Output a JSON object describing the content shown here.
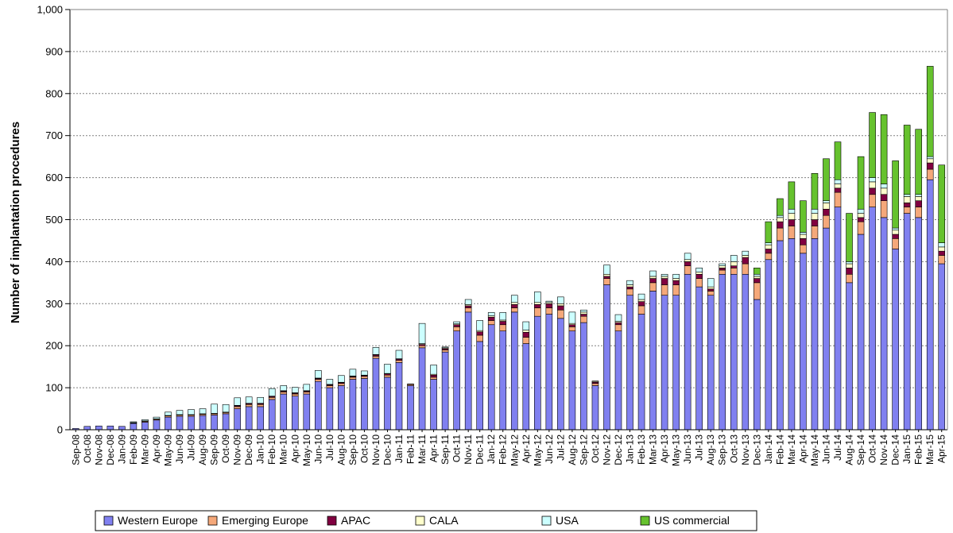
{
  "chart_data": {
    "type": "bar",
    "stacked": true,
    "title": "",
    "xlabel": "",
    "ylabel": "Number of implantation procedures",
    "ylim": [
      0,
      1000
    ],
    "yticks": [
      "0",
      "100",
      "200",
      "300",
      "400",
      "500",
      "600",
      "700",
      "800",
      "900",
      "1,000"
    ],
    "grid": "horizontal dashed",
    "legend_position": "bottom",
    "categories": [
      "Sep-08",
      "Oct-08",
      "Nov-08",
      "Dec-08",
      "Jan-09",
      "Feb-09",
      "Mar-09",
      "Apr-09",
      "May-09",
      "Jun-09",
      "Jul-09",
      "Aug-09",
      "Sep-09",
      "Oct-09",
      "Nov-09",
      "Dec-09",
      "Jan-10",
      "Feb-10",
      "Mar-10",
      "Apr-10",
      "May-10",
      "Jun-10",
      "Jul-10",
      "Aug-10",
      "Sep-10",
      "Oct-10",
      "Nov-10",
      "Dec-10",
      "Jan-11",
      "Feb-11",
      "Mar-11",
      "Apr-11",
      "Sep-11",
      "Oct-11",
      "Nov-11",
      "Dec-11",
      "Jan-12",
      "Feb-12",
      "May-12",
      "Apr-12",
      "May-12",
      "Jun-12",
      "Jul-12",
      "Aug-12",
      "Sep-12",
      "Oct-12",
      "Nov-12",
      "Dec-12",
      "Jan-13",
      "Feb-13",
      "Mar-13",
      "Apr-13",
      "May-13",
      "Jun-13",
      "Jul-13",
      "Aug-13",
      "Sep-13",
      "Oct-13",
      "Nov-13",
      "Dec-13",
      "Jan-14",
      "Feb-14",
      "Mar-14",
      "Apr-14",
      "May-14",
      "Jun-14",
      "Jul-14",
      "Aug-14",
      "Sep-14",
      "Oct-14",
      "Nov-14",
      "Dec-14",
      "Jan-15",
      "Feb-15",
      "Mar-15",
      "Apr-15"
    ],
    "series": [
      {
        "name": "Western Europe",
        "color": "#8080f0",
        "values": [
          3,
          8,
          9,
          9,
          8,
          15,
          18,
          23,
          30,
          32,
          32,
          34,
          35,
          38,
          50,
          55,
          55,
          72,
          85,
          80,
          85,
          115,
          100,
          105,
          120,
          122,
          170,
          125,
          160,
          105,
          195,
          120,
          185,
          235,
          280,
          210,
          250,
          235,
          280,
          205,
          270,
          275,
          265,
          235,
          255,
          105,
          345,
          235,
          320,
          275,
          330,
          320,
          320,
          370,
          340,
          320,
          370,
          370,
          370,
          310,
          405,
          450,
          455,
          420,
          455,
          480,
          530,
          350,
          465,
          530,
          505,
          430,
          515,
          505,
          595,
          395
        ]
      },
      {
        "name": "Emerging Europe",
        "color": "#f5a87a",
        "values": [
          0,
          0,
          0,
          0,
          0,
          1,
          2,
          2,
          3,
          3,
          3,
          3,
          3,
          3,
          5,
          5,
          5,
          5,
          5,
          5,
          5,
          5,
          5,
          5,
          5,
          5,
          5,
          5,
          5,
          3,
          5,
          5,
          5,
          10,
          10,
          15,
          10,
          15,
          10,
          15,
          20,
          15,
          20,
          10,
          15,
          5,
          15,
          15,
          15,
          20,
          20,
          25,
          25,
          20,
          20,
          10,
          10,
          15,
          25,
          40,
          15,
          30,
          30,
          20,
          30,
          30,
          35,
          20,
          30,
          30,
          40,
          25,
          15,
          25,
          25,
          20
        ]
      },
      {
        "name": "APAC",
        "color": "#800040",
        "values": [
          0,
          0,
          0,
          0,
          0,
          1,
          1,
          1,
          1,
          1,
          1,
          1,
          1,
          1,
          2,
          2,
          2,
          2,
          2,
          2,
          2,
          2,
          2,
          2,
          2,
          2,
          3,
          3,
          3,
          1,
          3,
          5,
          3,
          5,
          5,
          8,
          8,
          8,
          8,
          12,
          8,
          10,
          10,
          5,
          5,
          3,
          5,
          5,
          5,
          10,
          10,
          15,
          10,
          10,
          10,
          5,
          5,
          5,
          15,
          10,
          10,
          15,
          15,
          15,
          15,
          15,
          10,
          15,
          10,
          15,
          15,
          10,
          10,
          15,
          15,
          10
        ]
      },
      {
        "name": "CALA",
        "color": "#ffffcc",
        "values": [
          0,
          0,
          0,
          0,
          0,
          0,
          0,
          0,
          0,
          0,
          0,
          0,
          0,
          0,
          1,
          1,
          1,
          1,
          1,
          1,
          1,
          1,
          1,
          1,
          1,
          1,
          1,
          1,
          1,
          0,
          2,
          2,
          2,
          2,
          3,
          3,
          3,
          3,
          5,
          5,
          5,
          3,
          5,
          3,
          5,
          2,
          5,
          3,
          5,
          5,
          5,
          5,
          5,
          5,
          5,
          5,
          5,
          10,
          5,
          5,
          10,
          10,
          15,
          10,
          15,
          15,
          10,
          10,
          10,
          15,
          15,
          10,
          15,
          10,
          10,
          10
        ]
      },
      {
        "name": "USA",
        "color": "#ccffff",
        "values": [
          0,
          0,
          0,
          0,
          0,
          2,
          3,
          4,
          8,
          10,
          12,
          12,
          22,
          18,
          18,
          15,
          14,
          18,
          12,
          13,
          15,
          18,
          12,
          16,
          16,
          10,
          17,
          22,
          20,
          0,
          48,
          22,
          2,
          5,
          12,
          24,
          8,
          18,
          17,
          20,
          25,
          3,
          16,
          27,
          5,
          1,
          22,
          16,
          10,
          13,
          13,
          5,
          10,
          15,
          10,
          20,
          5,
          15,
          10,
          5,
          5,
          5,
          10,
          5,
          10,
          5,
          10,
          5,
          10,
          10,
          10,
          5,
          5,
          5,
          5,
          10
        ]
      },
      {
        "name": "US commercial",
        "color": "#66c22e",
        "values": [
          0,
          0,
          0,
          0,
          0,
          0,
          0,
          0,
          0,
          0,
          0,
          0,
          0,
          0,
          0,
          0,
          0,
          0,
          0,
          0,
          0,
          0,
          0,
          0,
          0,
          0,
          0,
          0,
          0,
          0,
          0,
          0,
          0,
          0,
          0,
          0,
          0,
          0,
          0,
          0,
          0,
          0,
          0,
          0,
          0,
          0,
          0,
          0,
          0,
          0,
          0,
          0,
          0,
          0,
          0,
          0,
          0,
          0,
          0,
          15,
          50,
          40,
          65,
          75,
          85,
          100,
          90,
          115,
          125,
          155,
          165,
          160,
          165,
          155,
          215,
          185
        ]
      }
    ]
  }
}
